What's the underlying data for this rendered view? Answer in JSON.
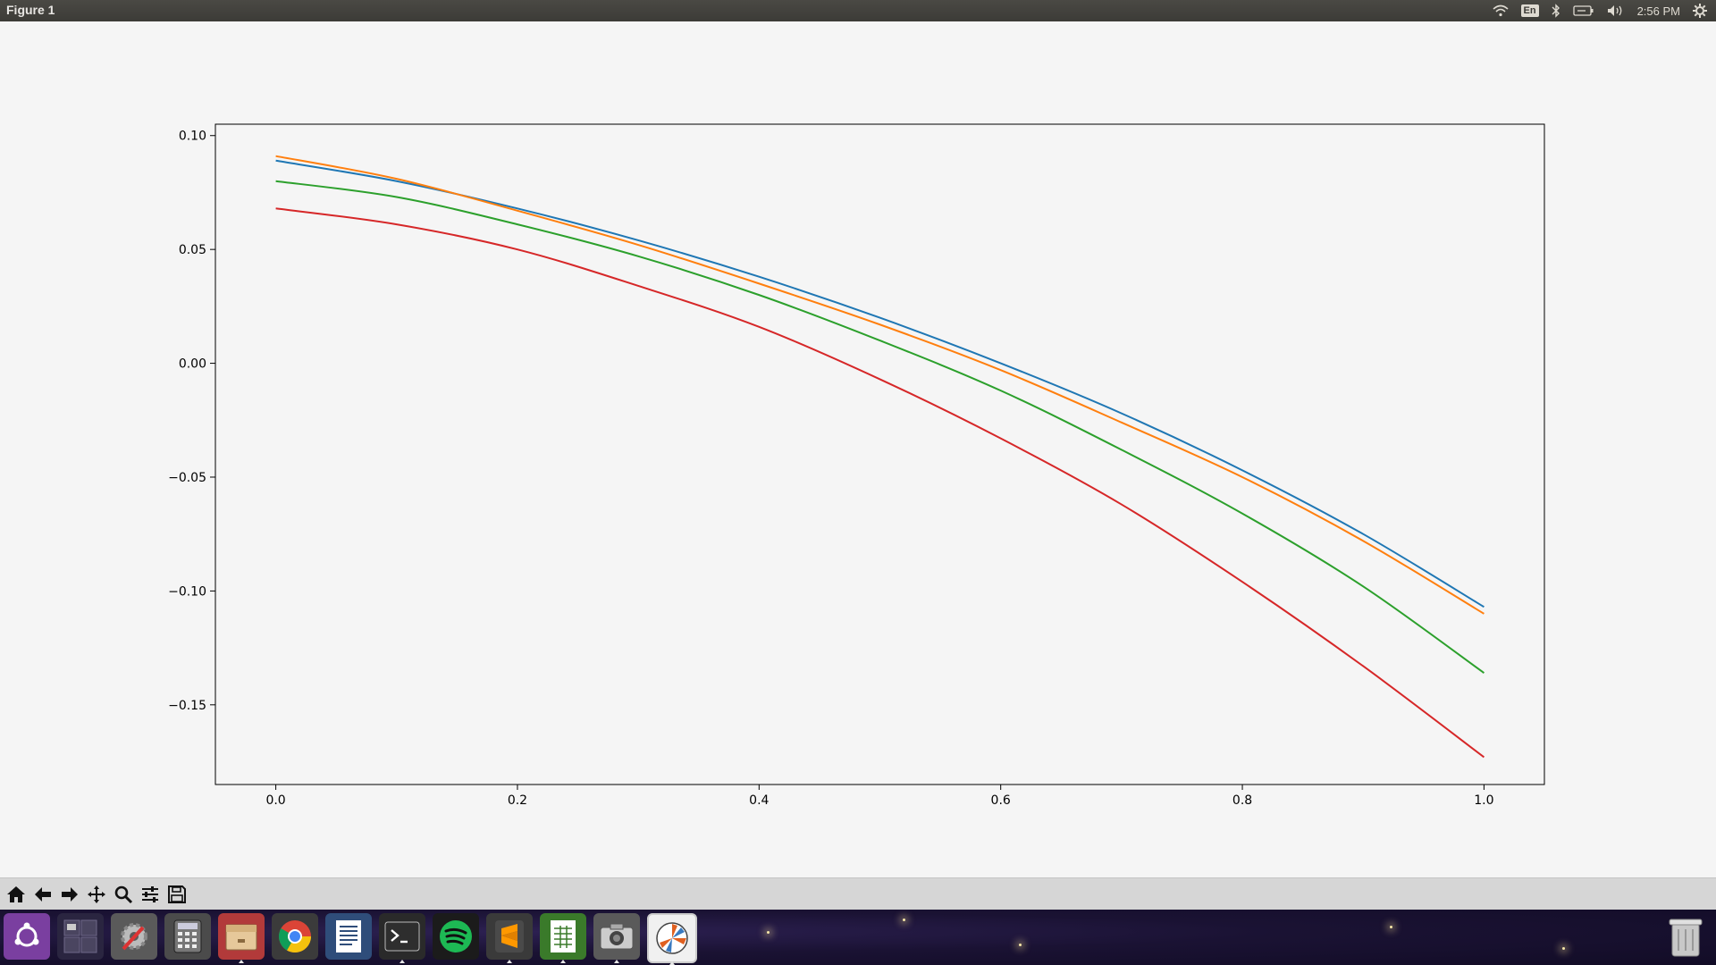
{
  "window": {
    "title": "Figure 1"
  },
  "system_tray": {
    "language": "En",
    "clock": "2:56 PM",
    "icons": [
      "wifi-icon",
      "language-indicator",
      "bluetooth-icon",
      "battery-icon",
      "volume-icon",
      "settings-gear-icon"
    ]
  },
  "chart_data": {
    "type": "line",
    "title": "",
    "xlabel": "",
    "ylabel": "",
    "xlim": [
      -0.05,
      1.05
    ],
    "ylim": [
      -0.185,
      0.105
    ],
    "x_ticks": [
      "0.0",
      "0.2",
      "0.4",
      "0.6",
      "0.8",
      "1.0"
    ],
    "x_tick_values": [
      0.0,
      0.2,
      0.4,
      0.6,
      0.8,
      1.0
    ],
    "y_ticks": [
      "0.10",
      "0.05",
      "0.00",
      "−0.05",
      "−0.10",
      "−0.15"
    ],
    "y_tick_values": [
      0.1,
      0.05,
      0.0,
      -0.05,
      -0.1,
      -0.15
    ],
    "grid": false,
    "legend": "none",
    "x": [
      0.0,
      0.1,
      0.2,
      0.3,
      0.4,
      0.5,
      0.6,
      0.7,
      0.8,
      0.9,
      1.0
    ],
    "series": [
      {
        "color": "#1f77b4",
        "values": [
          0.089,
          0.08,
          0.068,
          0.054,
          0.038,
          0.02,
          0.0,
          -0.022,
          -0.047,
          -0.075,
          -0.107
        ]
      },
      {
        "color": "#ff7f0e",
        "values": [
          0.091,
          0.081,
          0.067,
          0.052,
          0.035,
          0.017,
          -0.003,
          -0.026,
          -0.05,
          -0.078,
          -0.11
        ]
      },
      {
        "color": "#2ca02c",
        "values": [
          0.08,
          0.073,
          0.061,
          0.047,
          0.03,
          0.01,
          -0.012,
          -0.038,
          -0.066,
          -0.098,
          -0.136
        ]
      },
      {
        "color": "#d62728",
        "values": [
          0.068,
          0.061,
          0.05,
          0.034,
          0.016,
          -0.007,
          -0.033,
          -0.062,
          -0.096,
          -0.133,
          -0.173
        ]
      }
    ]
  },
  "toolbar": {
    "buttons": [
      "home-icon",
      "back-arrow-icon",
      "forward-arrow-icon",
      "pan-icon",
      "zoom-icon",
      "configure-subplots-icon",
      "save-icon"
    ]
  },
  "dock": {
    "apps": [
      "ubuntu-dash-icon",
      "workspace-switcher-icon",
      "system-settings-icon",
      "calculator-icon",
      "file-manager-icon",
      "chrome-icon",
      "text-editor-icon",
      "terminal-icon",
      "spotify-icon",
      "sublime-text-icon",
      "spreadsheet-icon",
      "screenshot-icon",
      "python-figure-icon"
    ],
    "trash": "trash-icon"
  }
}
